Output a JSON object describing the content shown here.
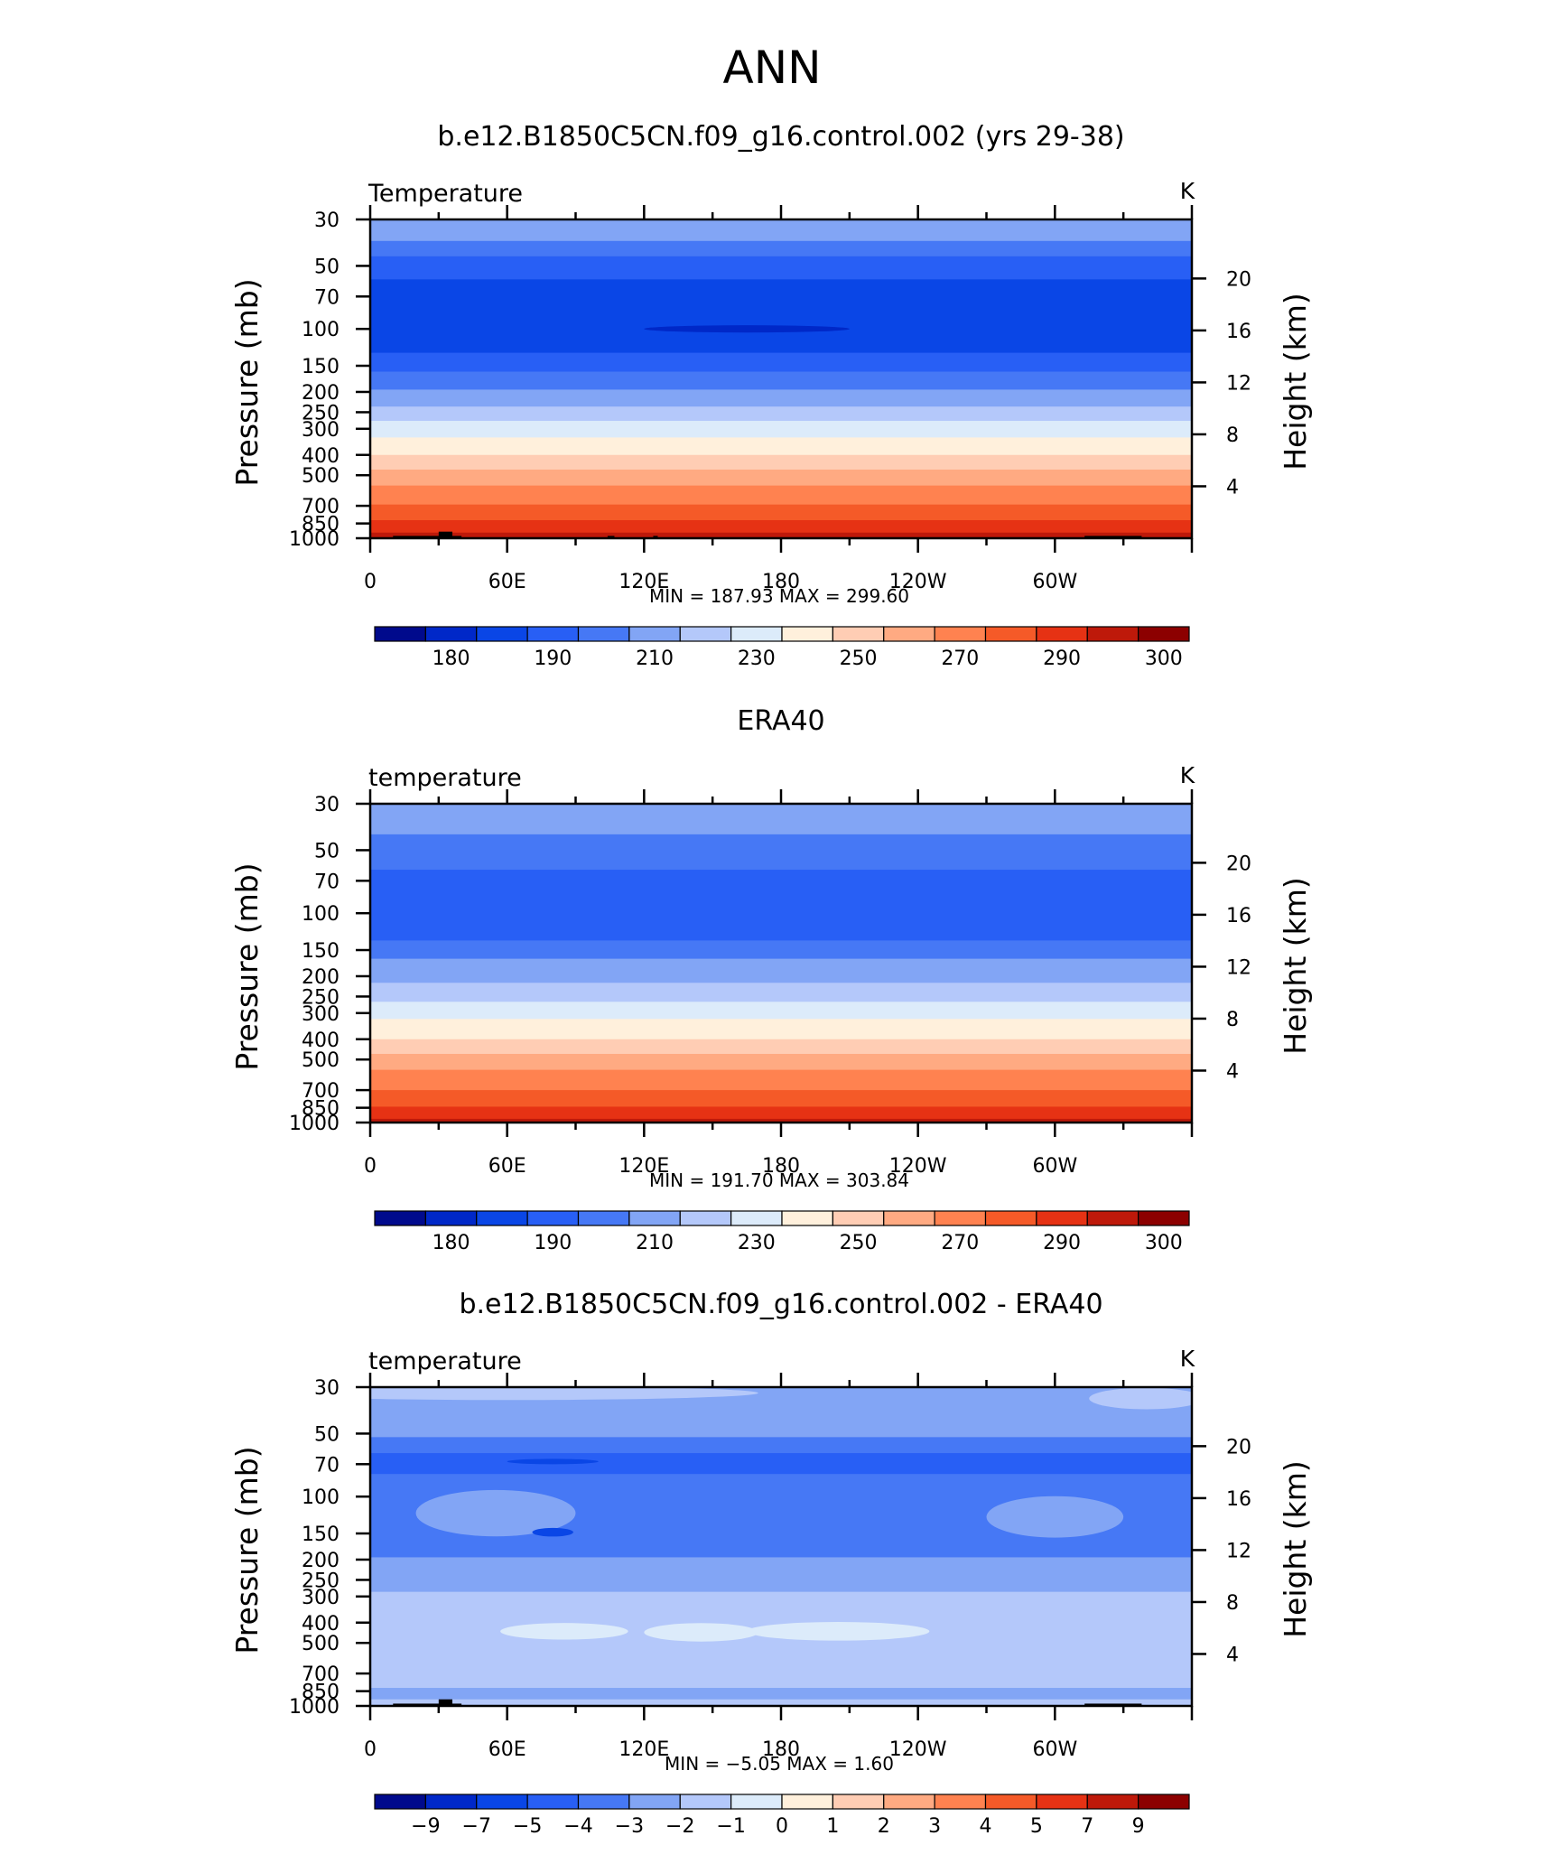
{
  "figure_title": "ANN",
  "chart_data": [
    {
      "type": "heatmap",
      "title": "b.e12.B1850C5CN.f09_g16.control.002 (yrs 29-38)",
      "variable": "Temperature",
      "units": "K",
      "ylabel_left": "Pressure (mb)",
      "ylabel_right": "Height (km)",
      "x_ticks": [
        "0",
        "60E",
        "120E",
        "180",
        "120W",
        "60W"
      ],
      "y_ticks_pressure": [
        "30",
        "50",
        "70",
        "100",
        "150",
        "200",
        "250",
        "300",
        "400",
        "500",
        "700",
        "850",
        "1000"
      ],
      "y_ticks_height": [
        "20",
        "16",
        "12",
        "8",
        "4"
      ],
      "stats": {
        "min": 187.93,
        "max": 299.6
      },
      "stats_text": "MIN = 187.93 MAX = 299.60",
      "colorbar_labels": [
        "180",
        "190",
        "210",
        "230",
        "250",
        "270",
        "290",
        "300"
      ],
      "colorbar_colors": [
        "#000a8c",
        "#0028c8",
        "#0a46e6",
        "#285ff5",
        "#4678f5",
        "#82a5f5",
        "#b4c8fa",
        "#dcebfa",
        "#fff0dc",
        "#ffcdb4",
        "#ffaa82",
        "#ff8250",
        "#f55a28",
        "#e63214",
        "#be190a",
        "#8c0000"
      ],
      "bands": [
        {
          "p": [
            30,
            38
          ],
          "color": "#82a5f5"
        },
        {
          "p": [
            38,
            45
          ],
          "color": "#4678f5"
        },
        {
          "p": [
            45,
            58
          ],
          "color": "#285ff5"
        },
        {
          "p": [
            58,
            130
          ],
          "color": "#0a46e6"
        },
        {
          "p": [
            130,
            160
          ],
          "color": "#285ff5"
        },
        {
          "p": [
            160,
            195
          ],
          "color": "#4678f5"
        },
        {
          "p": [
            195,
            235
          ],
          "color": "#82a5f5"
        },
        {
          "p": [
            235,
            275
          ],
          "color": "#b4c8fa"
        },
        {
          "p": [
            275,
            330
          ],
          "color": "#dcebfa"
        },
        {
          "p": [
            330,
            400
          ],
          "color": "#fff0dc"
        },
        {
          "p": [
            400,
            470
          ],
          "color": "#ffcdb4"
        },
        {
          "p": [
            470,
            560
          ],
          "color": "#ffaa82"
        },
        {
          "p": [
            560,
            690
          ],
          "color": "#ff8250"
        },
        {
          "p": [
            690,
            820
          ],
          "color": "#f55a28"
        },
        {
          "p": [
            820,
            940
          ],
          "color": "#e63214"
        },
        {
          "p": [
            940,
            1000
          ],
          "color": "#be190a"
        }
      ],
      "features": [
        {
          "lon": 165,
          "p": 100,
          "rx": 45,
          "dp": 4,
          "color": "#0028c8"
        }
      ],
      "terrain": [
        [
          10,
          40
        ],
        [
          30,
          36
        ],
        [
          104,
          107
        ],
        [
          124,
          126
        ],
        [
          313,
          338
        ]
      ]
    },
    {
      "type": "heatmap",
      "title": "ERA40",
      "variable": "temperature",
      "units": "K",
      "ylabel_left": "Pressure (mb)",
      "ylabel_right": "Height (km)",
      "x_ticks": [
        "0",
        "60E",
        "120E",
        "180",
        "120W",
        "60W"
      ],
      "y_ticks_pressure": [
        "30",
        "50",
        "70",
        "100",
        "150",
        "200",
        "250",
        "300",
        "400",
        "500",
        "700",
        "850",
        "1000"
      ],
      "y_ticks_height": [
        "20",
        "16",
        "12",
        "8",
        "4"
      ],
      "stats": {
        "min": 191.7,
        "max": 303.84
      },
      "stats_text": "MIN = 191.70 MAX = 303.84",
      "colorbar_labels": [
        "180",
        "190",
        "210",
        "230",
        "250",
        "270",
        "290",
        "300"
      ],
      "colorbar_colors": [
        "#000a8c",
        "#0028c8",
        "#0a46e6",
        "#285ff5",
        "#4678f5",
        "#82a5f5",
        "#b4c8fa",
        "#dcebfa",
        "#fff0dc",
        "#ffcdb4",
        "#ffaa82",
        "#ff8250",
        "#f55a28",
        "#e63214",
        "#be190a",
        "#8c0000"
      ],
      "bands": [
        {
          "p": [
            30,
            42
          ],
          "color": "#82a5f5"
        },
        {
          "p": [
            42,
            62
          ],
          "color": "#4678f5"
        },
        {
          "p": [
            62,
            135
          ],
          "color": "#285ff5"
        },
        {
          "p": [
            135,
            165
          ],
          "color": "#4678f5"
        },
        {
          "p": [
            165,
            215
          ],
          "color": "#82a5f5"
        },
        {
          "p": [
            215,
            265
          ],
          "color": "#b4c8fa"
        },
        {
          "p": [
            265,
            320
          ],
          "color": "#dcebfa"
        },
        {
          "p": [
            320,
            400
          ],
          "color": "#fff0dc"
        },
        {
          "p": [
            400,
            470
          ],
          "color": "#ffcdb4"
        },
        {
          "p": [
            470,
            560
          ],
          "color": "#ffaa82"
        },
        {
          "p": [
            560,
            700
          ],
          "color": "#ff8250"
        },
        {
          "p": [
            700,
            840
          ],
          "color": "#f55a28"
        },
        {
          "p": [
            840,
            960
          ],
          "color": "#e63214"
        },
        {
          "p": [
            960,
            1000
          ],
          "color": "#be190a"
        }
      ],
      "features": [],
      "terrain": []
    },
    {
      "type": "heatmap",
      "title": "b.e12.B1850C5CN.f09_g16.control.002 - ERA40",
      "variable": "temperature",
      "units": "K",
      "ylabel_left": "Pressure (mb)",
      "ylabel_right": "Height (km)",
      "x_ticks": [
        "0",
        "60E",
        "120E",
        "180",
        "120W",
        "60W"
      ],
      "y_ticks_pressure": [
        "30",
        "50",
        "70",
        "100",
        "150",
        "200",
        "250",
        "300",
        "400",
        "500",
        "700",
        "850",
        "1000"
      ],
      "y_ticks_height": [
        "20",
        "16",
        "12",
        "8",
        "4"
      ],
      "stats": {
        "min": -5.05,
        "max": 1.6
      },
      "stats_text": "MIN = −5.05 MAX = 1.60",
      "colorbar_labels": [
        "−9",
        "−7",
        "−5",
        "−4",
        "−3",
        "−2",
        "−1",
        "0",
        "1",
        "2",
        "3",
        "4",
        "5",
        "7",
        "9"
      ],
      "colorbar_colors": [
        "#000a8c",
        "#0028c8",
        "#0a46e6",
        "#285ff5",
        "#4678f5",
        "#82a5f5",
        "#b4c8fa",
        "#dcebfa",
        "#fff0dc",
        "#ffcdb4",
        "#ffaa82",
        "#ff8250",
        "#f55a28",
        "#e63214",
        "#be190a",
        "#8c0000"
      ],
      "bands": [
        {
          "p": [
            30,
            52
          ],
          "color": "#82a5f5"
        },
        {
          "p": [
            52,
            62
          ],
          "color": "#4678f5"
        },
        {
          "p": [
            62,
            78
          ],
          "color": "#285ff5"
        },
        {
          "p": [
            78,
            195
          ],
          "color": "#4678f5"
        },
        {
          "p": [
            195,
            285
          ],
          "color": "#82a5f5"
        },
        {
          "p": [
            285,
            820
          ],
          "color": "#b4c8fa"
        },
        {
          "p": [
            820,
            930
          ],
          "color": "#82a5f5"
        },
        {
          "p": [
            930,
            1000
          ],
          "color": "#b4c8fa"
        }
      ],
      "features": [
        {
          "lon": 60,
          "p": 32,
          "rx": 110,
          "dp": 3,
          "color": "#b4c8fa"
        },
        {
          "lon": 340,
          "p": 34,
          "rx": 25,
          "dp": 4,
          "color": "#b4c8fa"
        },
        {
          "lon": 55,
          "p": 120,
          "rx": 35,
          "dp": 30,
          "color": "#82a5f5"
        },
        {
          "lon": 300,
          "p": 125,
          "rx": 30,
          "dp": 28,
          "color": "#82a5f5"
        },
        {
          "lon": 80,
          "p": 148,
          "rx": 9,
          "dp": 7,
          "color": "#0a46e6"
        },
        {
          "lon": 80,
          "p": 68,
          "rx": 20,
          "dp": 2,
          "color": "#0a46e6"
        },
        {
          "lon": 85,
          "p": 440,
          "rx": 28,
          "dp": 40,
          "color": "#dcebfa"
        },
        {
          "lon": 145,
          "p": 445,
          "rx": 25,
          "dp": 45,
          "color": "#dcebfa"
        },
        {
          "lon": 205,
          "p": 440,
          "rx": 40,
          "dp": 45,
          "color": "#dcebfa"
        }
      ],
      "terrain": [
        [
          10,
          40
        ],
        [
          30,
          36
        ],
        [
          313,
          338
        ]
      ]
    }
  ]
}
